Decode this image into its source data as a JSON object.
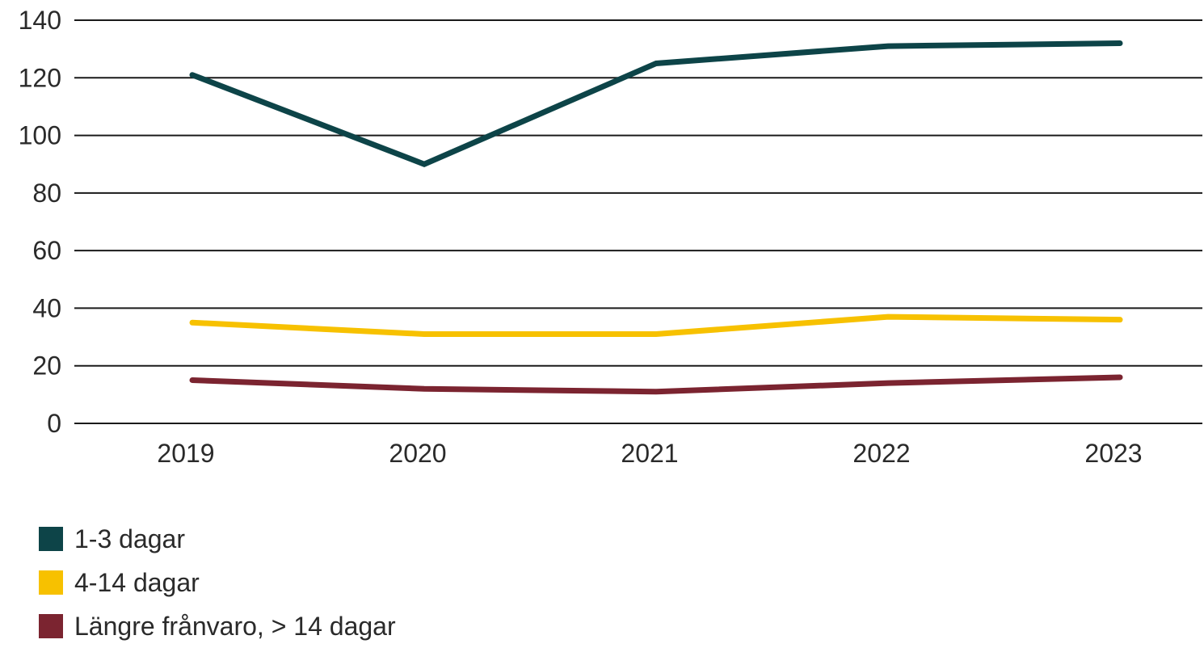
{
  "chart_data": {
    "type": "line",
    "categories": [
      "2019",
      "2020",
      "2021",
      "2022",
      "2023"
    ],
    "ylim": [
      0,
      140
    ],
    "yticks": [
      "0",
      "20",
      "40",
      "60",
      "80",
      "100",
      "120",
      "140"
    ],
    "grid": true,
    "legend_position": "bottom-left",
    "series": [
      {
        "name": "1-3 dagar",
        "color": "#0d4448",
        "values": [
          121,
          90,
          125,
          131,
          132
        ]
      },
      {
        "name": "4-14 dagar",
        "color": "#f7c100",
        "values": [
          35,
          31,
          31,
          37,
          36
        ]
      },
      {
        "name": "Längre frånvaro, > 14 dagar",
        "color": "#7b2430",
        "values": [
          15,
          12,
          11,
          14,
          16
        ]
      }
    ]
  }
}
